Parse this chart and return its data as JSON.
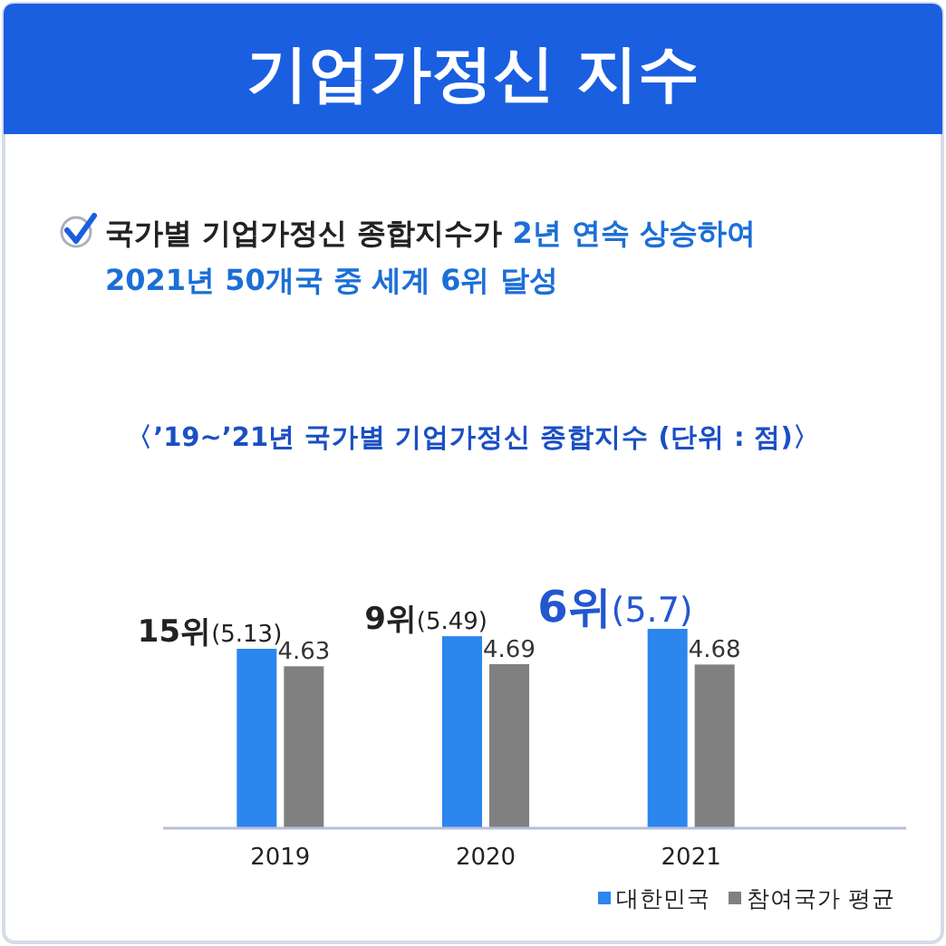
{
  "chart_data": {
    "type": "bar",
    "title": "기업가정신 지수",
    "subtitle": "〈’19~’21년 국가별 기업가정신 종합지수 (단위 : 점)〉",
    "annotations": [
      "국가별 기업가정신 종합지수가",
      "2년 연속 상승하여",
      "2021년 50개국 중 세계 6위 달성"
    ],
    "categories": [
      "2019",
      "2020",
      "2021"
    ],
    "relative": false,
    "legend": "bottom right",
    "series": [
      {
        "name": "대한민국",
        "color": "#2b86ee",
        "values": [
          5.13,
          5.49,
          5.7
        ],
        "value_labels": [
          "15위(5.13)",
          "9위(5.49)",
          "6위(5.7)"
        ]
      },
      {
        "name": "참여국가 평균",
        "color": "#808080",
        "values": [
          4.63,
          4.69,
          4.68
        ],
        "value_labels": [
          "4.63",
          "4.69",
          "4.68"
        ]
      }
    ]
  }
}
